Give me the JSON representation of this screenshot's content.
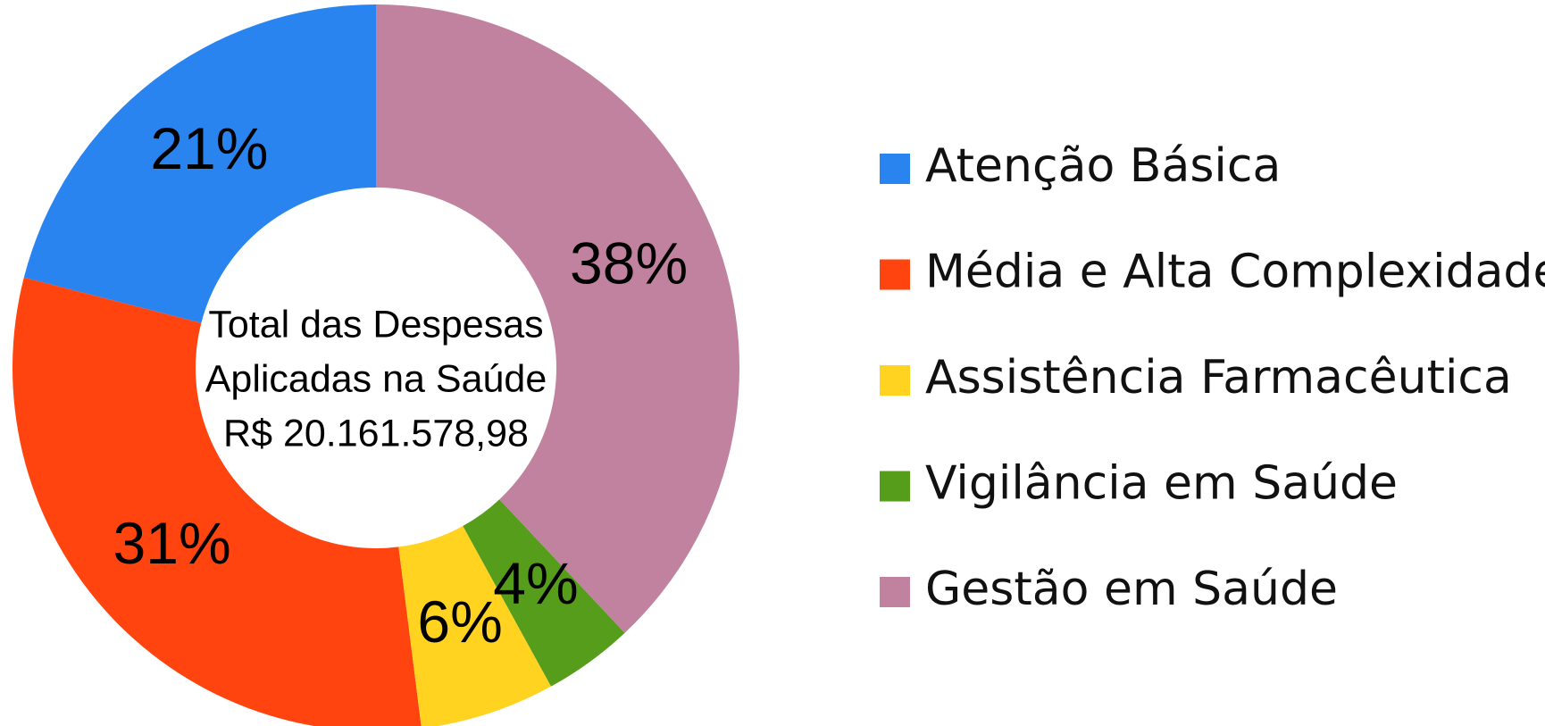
{
  "chart_data": {
    "type": "pie",
    "center_text": [
      "Total das Despesas",
      "Aplicadas na Saúde",
      "R$ 20.161.578,98"
    ],
    "categories": [
      "Atenção Básica",
      "Média e Alta Complexidade",
      "Assistência Farmacêutica",
      "Vigilância em Saúde",
      "Gestão em Saúde"
    ],
    "values": [
      21,
      31,
      6,
      4,
      38
    ],
    "value_labels": [
      "21%",
      "31%",
      "6%",
      "4%",
      "38%"
    ],
    "colors": [
      "#2a84f0",
      "#ff4410",
      "#ffd320",
      "#579d1c",
      "#c1829f"
    ],
    "legend": "right"
  }
}
